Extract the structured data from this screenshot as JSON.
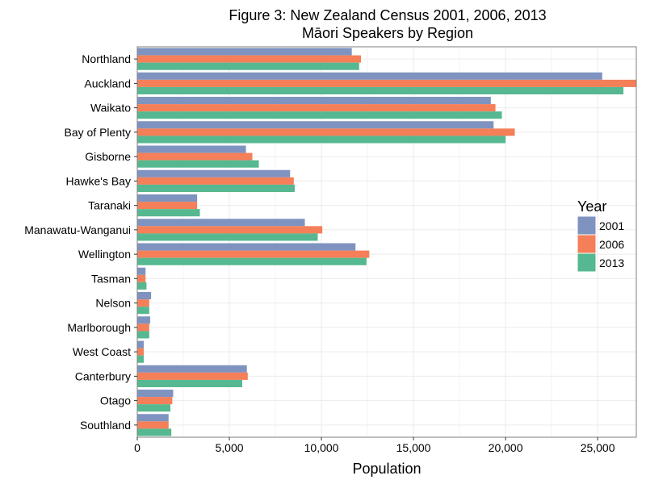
{
  "chart_data": {
    "type": "bar",
    "orientation": "horizontal",
    "title": "Figure 3: New Zealand Census 2001, 2006, 2013",
    "subtitle": "Māori Speakers by Region",
    "xlabel": "Population",
    "ylabel": "",
    "xlim": [
      0,
      27100
    ],
    "xticks": [
      0,
      5000,
      10000,
      15000,
      20000,
      25000
    ],
    "xtick_labels": [
      "0",
      "5,000",
      "10,000",
      "15,000",
      "20,000",
      "25,000"
    ],
    "grid": true,
    "legend": {
      "title": "Year",
      "position": "right"
    },
    "categories": [
      "Northland",
      "Auckland",
      "Waikato",
      "Bay of Plenty",
      "Gisborne",
      "Hawke's Bay",
      "Taranaki",
      "Manawatu-Wanganui",
      "Wellington",
      "Tasman",
      "Nelson",
      "Marlborough",
      "West Coast",
      "Canterbury",
      "Otago",
      "Southland"
    ],
    "series": [
      {
        "name": "2001",
        "color": "#7f93c1",
        "values": [
          11650,
          25250,
          19200,
          19350,
          5900,
          8300,
          3250,
          9100,
          11850,
          450,
          750,
          700,
          350,
          5950,
          1950,
          1700
        ]
      },
      {
        "name": "2006",
        "color": "#f47f58",
        "values": [
          12150,
          27100,
          19450,
          20500,
          6250,
          8500,
          3250,
          10050,
          12600,
          450,
          650,
          650,
          350,
          6000,
          1900,
          1700
        ]
      },
      {
        "name": "2013",
        "color": "#56b890",
        "values": [
          12050,
          26400,
          19800,
          20000,
          6600,
          8550,
          3400,
          9800,
          12450,
          500,
          650,
          650,
          350,
          5700,
          1800,
          1850
        ]
      }
    ]
  }
}
